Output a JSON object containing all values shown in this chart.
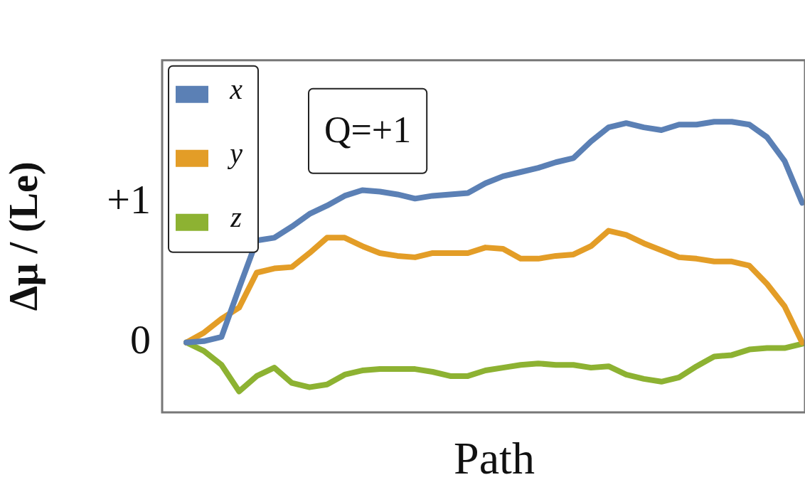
{
  "chart_data": {
    "type": "line",
    "ylabel": "Δμ / (Le)",
    "xlabel": "Path",
    "annotations": [
      "Q=+1"
    ],
    "categories": [
      null,
      null,
      null,
      null,
      null,
      null,
      null,
      null,
      null,
      null,
      null,
      null,
      null,
      null,
      null,
      null,
      null,
      null,
      null,
      null,
      null,
      null,
      null,
      null,
      null,
      null,
      null,
      null,
      null,
      null,
      null,
      null,
      null,
      null,
      null,
      null
    ],
    "series": [
      {
        "name": "x",
        "color": "#5b80b5",
        "values": [
          0,
          0.01,
          0.04,
          0.39,
          0.73,
          0.75,
          0.83,
          0.92,
          0.98,
          1.05,
          1.09,
          1.08,
          1.06,
          1.03,
          1.05,
          1.06,
          1.07,
          1.14,
          1.19,
          1.22,
          1.25,
          1.29,
          1.32,
          1.44,
          1.54,
          1.57,
          1.54,
          1.52,
          1.56,
          1.56,
          1.58,
          1.58,
          1.56,
          1.47,
          1.3,
          1.0
        ]
      },
      {
        "name": "y",
        "color": "#e39d27",
        "values": [
          0,
          0.07,
          0.17,
          0.25,
          0.5,
          0.53,
          0.54,
          0.64,
          0.75,
          0.75,
          0.69,
          0.64,
          0.62,
          0.61,
          0.64,
          0.64,
          0.64,
          0.68,
          0.67,
          0.6,
          0.6,
          0.62,
          0.63,
          0.69,
          0.8,
          0.77,
          0.71,
          0.66,
          0.61,
          0.6,
          0.58,
          0.58,
          0.55,
          0.42,
          0.26,
          0
        ]
      },
      {
        "name": "z",
        "color": "#8db232",
        "values": [
          0,
          -0.06,
          -0.16,
          -0.35,
          -0.24,
          -0.18,
          -0.29,
          -0.32,
          -0.3,
          -0.23,
          -0.2,
          -0.19,
          -0.19,
          -0.19,
          -0.21,
          -0.24,
          -0.24,
          -0.2,
          -0.18,
          -0.16,
          -0.15,
          -0.16,
          -0.16,
          -0.18,
          -0.17,
          -0.23,
          -0.26,
          -0.28,
          -0.25,
          -0.17,
          -0.1,
          -0.09,
          -0.05,
          -0.04,
          -0.04,
          -0.01
        ]
      }
    ],
    "ylim": [
      -0.5,
      2.02
    ],
    "yticks": [
      0,
      {
        "value": 1,
        "label": "+1"
      }
    ],
    "grid": false,
    "legend": "top left",
    "marker": "none",
    "line_style": "solid"
  }
}
